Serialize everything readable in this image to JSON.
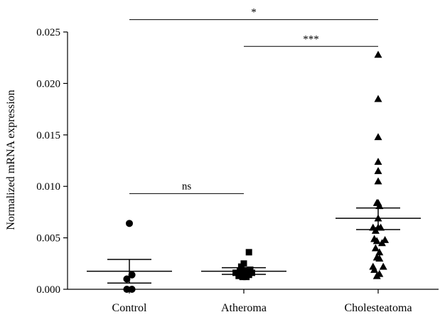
{
  "chart_data": {
    "type": "scatter",
    "ylabel": "Normalized mRNA expression",
    "ylim": [
      0,
      0.025
    ],
    "yticks": [
      "0.000",
      "0.005",
      "0.010",
      "0.015",
      "0.020",
      "0.025"
    ],
    "categories": [
      "Control",
      "Atheroma",
      "Cholesteatoma"
    ],
    "groups": [
      {
        "name": "Control",
        "marker": "circle",
        "mean": 0.00175,
        "sem_upper": 0.0029,
        "sem_lower": 0.0006,
        "points": [
          {
            "offset": 0.0,
            "y": 0.0064
          },
          {
            "offset": -0.3,
            "y": 0.001
          },
          {
            "offset": 0.3,
            "y": 0.0014
          },
          {
            "offset": -0.3,
            "y": 0.0
          },
          {
            "offset": 0.3,
            "y": 0.0
          }
        ]
      },
      {
        "name": "Atheroma",
        "marker": "square",
        "mean": 0.00175,
        "sem_upper": 0.0021,
        "sem_lower": 0.00145,
        "points": [
          {
            "offset": -0.95,
            "y": 0.0016
          },
          {
            "offset": -0.6,
            "y": 0.0013
          },
          {
            "offset": -0.45,
            "y": 0.0018
          },
          {
            "offset": -0.3,
            "y": 0.0015
          },
          {
            "offset": -0.3,
            "y": 0.0022
          },
          {
            "offset": -0.15,
            "y": 0.0012
          },
          {
            "offset": 0.0,
            "y": 0.0013
          },
          {
            "offset": 0.0,
            "y": 0.0016
          },
          {
            "offset": 0.0,
            "y": 0.0025
          },
          {
            "offset": 0.15,
            "y": 0.0018
          },
          {
            "offset": 0.3,
            "y": 0.0012
          },
          {
            "offset": 0.3,
            "y": 0.0015
          },
          {
            "offset": 0.45,
            "y": 0.0017
          },
          {
            "offset": 0.6,
            "y": 0.0014
          },
          {
            "offset": 0.6,
            "y": 0.0036
          },
          {
            "offset": 0.75,
            "y": 0.0019
          },
          {
            "offset": 0.95,
            "y": 0.0016
          }
        ]
      },
      {
        "name": "Cholesteatoma",
        "marker": "triangle",
        "mean": 0.0069,
        "sem_upper": 0.0079,
        "sem_lower": 0.0058,
        "points": [
          {
            "offset": 0.0,
            "y": 0.0228
          },
          {
            "offset": 0.0,
            "y": 0.0185
          },
          {
            "offset": 0.0,
            "y": 0.0148
          },
          {
            "offset": 0.0,
            "y": 0.0124
          },
          {
            "offset": 0.0,
            "y": 0.0115
          },
          {
            "offset": 0.0,
            "y": 0.0105
          },
          {
            "offset": -0.15,
            "y": 0.0084
          },
          {
            "offset": 0.0,
            "y": 0.0084
          },
          {
            "offset": 0.15,
            "y": 0.0081
          },
          {
            "offset": 0.0,
            "y": 0.0069
          },
          {
            "offset": -0.6,
            "y": 0.006
          },
          {
            "offset": -0.3,
            "y": 0.0057
          },
          {
            "offset": 0.0,
            "y": 0.006
          },
          {
            "offset": 0.3,
            "y": 0.006
          },
          {
            "offset": -0.45,
            "y": 0.0049
          },
          {
            "offset": -0.15,
            "y": 0.0047
          },
          {
            "offset": 0.45,
            "y": 0.0045
          },
          {
            "offset": 0.8,
            "y": 0.0048
          },
          {
            "offset": -0.3,
            "y": 0.004
          },
          {
            "offset": 0.15,
            "y": 0.0036
          },
          {
            "offset": -0.15,
            "y": 0.0031
          },
          {
            "offset": 0.15,
            "y": 0.003
          },
          {
            "offset": -0.6,
            "y": 0.0022
          },
          {
            "offset": -0.45,
            "y": 0.0019
          },
          {
            "offset": 0.6,
            "y": 0.0022
          },
          {
            "offset": -0.15,
            "y": 0.0013
          },
          {
            "offset": 0.15,
            "y": 0.0015
          }
        ]
      }
    ],
    "comparisons": [
      {
        "from": "Control",
        "to": "Atheroma",
        "y": 0.0093,
        "label": "ns"
      },
      {
        "from": "Control",
        "to": "Cholesteatoma",
        "y": 0.0262,
        "label": "*"
      },
      {
        "from": "Atheroma",
        "to": "Cholesteatoma",
        "y": 0.0236,
        "label": "***"
      }
    ]
  }
}
